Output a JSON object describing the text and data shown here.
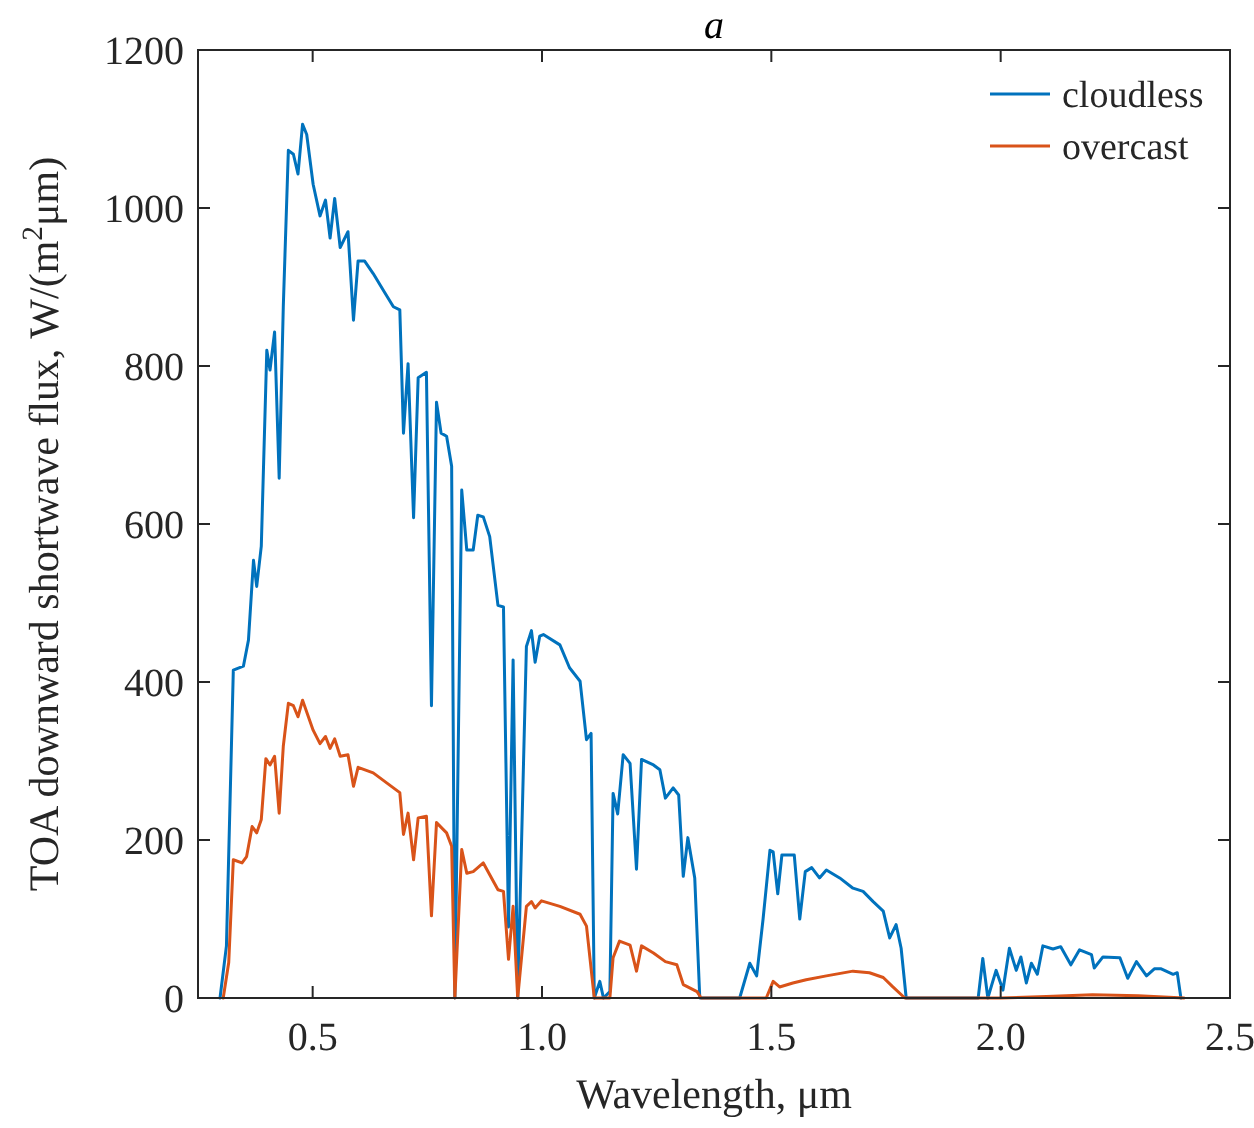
{
  "chart_data": {
    "type": "line",
    "title": "a",
    "xlabel": "Wavelength, μm",
    "ylabel": "TOA downward shortwave flux, W/(m$^{2}$μm)",
    "xlim": [
      0.25,
      2.5
    ],
    "ylim": [
      0,
      1200
    ],
    "xticks": [
      0.5,
      {
        "value": 1,
        "label": "1.0"
      },
      1.5,
      {
        "value": 2,
        "label": "2.0"
      },
      2.5
    ],
    "yticks": [
      0,
      200,
      400,
      600,
      800,
      1000,
      1200
    ],
    "grid": false,
    "legend": "top right",
    "line_style": "solid",
    "marker": "none",
    "series": [
      {
        "name": "cloudless",
        "color": "#0072bd",
        "x": [
          0.298,
          0.312,
          0.327,
          0.349,
          0.36,
          0.371,
          0.378,
          0.388,
          0.4,
          0.407,
          0.417,
          0.427,
          0.436,
          0.447,
          0.458,
          0.468,
          0.478,
          0.487,
          0.501,
          0.516,
          0.528,
          0.538,
          0.548,
          0.56,
          0.577,
          0.589,
          0.599,
          0.613,
          0.632,
          0.654,
          0.676,
          0.69,
          0.698,
          0.708,
          0.72,
          0.73,
          0.748,
          0.759,
          0.77,
          0.78,
          0.792,
          0.803,
          0.81,
          0.825,
          0.836,
          0.85,
          0.86,
          0.872,
          0.886,
          0.904,
          0.916,
          0.927,
          0.937,
          0.947,
          0.966,
          0.977,
          0.985,
          0.995,
          1.003,
          1.039,
          1.06,
          1.083,
          1.097,
          1.107,
          1.114,
          1.126,
          1.134,
          1.148,
          1.155,
          1.165,
          1.177,
          1.192,
          1.206,
          1.217,
          1.243,
          1.257,
          1.269,
          1.286,
          1.298,
          1.308,
          1.318,
          1.333,
          1.344,
          1.431,
          1.453,
          1.468,
          1.482,
          1.497,
          1.504,
          1.514,
          1.523,
          1.55,
          1.562,
          1.574,
          1.588,
          1.605,
          1.62,
          1.649,
          1.678,
          1.7,
          1.722,
          1.744,
          1.758,
          1.772,
          1.783,
          1.794,
          1.951,
          1.961,
          1.972,
          1.99,
          2.005,
          2.019,
          2.034,
          2.044,
          2.056,
          2.067,
          2.08,
          2.092,
          2.114,
          2.131,
          2.153,
          2.172,
          2.198,
          2.204,
          2.223,
          2.26,
          2.277,
          2.296,
          2.318,
          2.335,
          2.35,
          2.376,
          2.385,
          2.393
        ],
        "values": [
          0,
          66,
          415,
          420,
          453,
          554,
          521,
          572,
          820,
          795,
          843,
          658,
          876,
          1073,
          1068,
          1043,
          1106,
          1093,
          1030,
          990,
          1010,
          962,
          1012,
          950,
          970,
          858,
          933,
          933,
          917,
          896,
          875,
          871,
          715,
          803,
          608,
          785,
          792,
          370,
          754,
          715,
          711,
          673,
          0,
          643,
          567,
          567,
          611,
          609,
          584,
          497,
          495,
          90,
          428,
          0,
          445,
          465,
          425,
          458,
          460,
          447,
          418,
          401,
          327,
          335,
          0,
          21,
          0,
          8,
          259,
          233,
          308,
          297,
          163,
          302,
          295,
          289,
          253,
          266,
          257,
          154,
          203,
          152,
          0,
          0,
          44,
          28,
          100,
          187,
          185,
          132,
          181,
          181,
          100,
          160,
          165,
          152,
          162,
          152,
          139,
          135,
          122,
          110,
          76,
          93,
          63,
          0,
          0,
          50,
          0,
          35,
          10,
          63,
          35,
          52,
          19,
          44,
          30,
          66,
          62,
          65,
          42,
          61,
          55,
          38,
          52,
          51,
          25,
          46,
          28,
          37,
          37,
          30,
          32,
          0
        ]
      },
      {
        "name": "overcast",
        "color": "#d95319",
        "x": [
          0.305,
          0.317,
          0.327,
          0.346,
          0.356,
          0.368,
          0.378,
          0.388,
          0.398,
          0.407,
          0.417,
          0.427,
          0.436,
          0.447,
          0.458,
          0.468,
          0.478,
          0.501,
          0.516,
          0.528,
          0.538,
          0.548,
          0.56,
          0.577,
          0.589,
          0.599,
          0.632,
          0.69,
          0.698,
          0.708,
          0.72,
          0.73,
          0.748,
          0.759,
          0.77,
          0.792,
          0.803,
          0.81,
          0.825,
          0.836,
          0.85,
          0.872,
          0.904,
          0.916,
          0.927,
          0.937,
          0.947,
          0.966,
          0.977,
          0.985,
          0.999,
          1.039,
          1.083,
          1.097,
          1.114,
          1.148,
          1.155,
          1.169,
          1.192,
          1.206,
          1.217,
          1.243,
          1.269,
          1.294,
          1.308,
          1.338,
          1.347,
          1.489,
          1.504,
          1.518,
          1.547,
          1.576,
          1.62,
          1.678,
          1.714,
          1.744,
          1.765,
          1.791,
          2.0,
          2.1,
          2.2,
          2.3,
          2.4
        ],
        "values": [
          0,
          45,
          175,
          171,
          179,
          217,
          209,
          226,
          303,
          295,
          306,
          234,
          319,
          373,
          370,
          356,
          377,
          339,
          322,
          331,
          316,
          328,
          306,
          308,
          268,
          292,
          285,
          260,
          207,
          234,
          175,
          228,
          230,
          104,
          222,
          209,
          192,
          0,
          188,
          158,
          160,
          171,
          137,
          135,
          49,
          116,
          0,
          116,
          122,
          114,
          123,
          116,
          106,
          91,
          0,
          0,
          51,
          72,
          67,
          34,
          66,
          57,
          46,
          42,
          17,
          8,
          0,
          0,
          21,
          14,
          19,
          23,
          28,
          34,
          32,
          26,
          14,
          0,
          0,
          2,
          4,
          3,
          0
        ]
      }
    ]
  }
}
